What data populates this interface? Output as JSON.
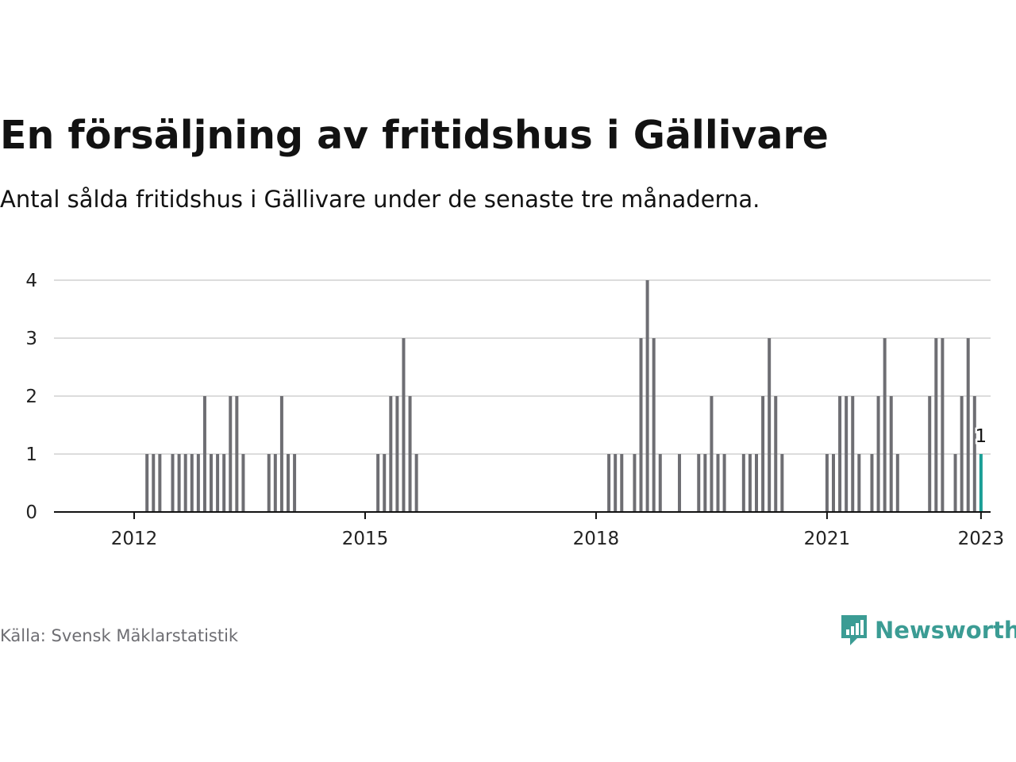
{
  "title": "En försäljning av fritidshus i Gällivare",
  "subtitle": "Antal sålda fritidshus i Gällivare under de senaste tre månaderna.",
  "source": "Källa: Svensk Mäklarstatistik",
  "brand": {
    "name": "Newsworthy",
    "color": "#3b9c94"
  },
  "colors": {
    "bar": "#6e6e73",
    "highlight": "#1a9e96",
    "grid": "#dcdcdc",
    "axis": "#121212"
  },
  "chart_data": {
    "type": "bar",
    "title": "En försäljning av fritidshus i Gällivare",
    "xlabel": "",
    "ylabel": "",
    "ylim": [
      0,
      4
    ],
    "yticks": [
      0,
      1,
      2,
      3,
      4
    ],
    "x_start": "2011-01",
    "x_end": "2023-02",
    "xticks": [
      {
        "label": "2012",
        "x": "2012-01"
      },
      {
        "label": "2015",
        "x": "2015-01"
      },
      {
        "label": "2018",
        "x": "2018-01"
      },
      {
        "label": "2021",
        "x": "2021-01"
      },
      {
        "label": "2023",
        "x": "2023-01"
      }
    ],
    "series": [
      {
        "name": "Antal sålda fritidshus",
        "points": [
          {
            "x": "2012-03",
            "y": 1
          },
          {
            "x": "2012-04",
            "y": 1
          },
          {
            "x": "2012-05",
            "y": 1
          },
          {
            "x": "2012-07",
            "y": 1
          },
          {
            "x": "2012-08",
            "y": 1
          },
          {
            "x": "2012-09",
            "y": 1
          },
          {
            "x": "2012-10",
            "y": 1
          },
          {
            "x": "2012-11",
            "y": 1
          },
          {
            "x": "2012-12",
            "y": 2
          },
          {
            "x": "2013-01",
            "y": 1
          },
          {
            "x": "2013-02",
            "y": 1
          },
          {
            "x": "2013-03",
            "y": 1
          },
          {
            "x": "2013-04",
            "y": 2
          },
          {
            "x": "2013-05",
            "y": 2
          },
          {
            "x": "2013-06",
            "y": 1
          },
          {
            "x": "2013-10",
            "y": 1
          },
          {
            "x": "2013-11",
            "y": 1
          },
          {
            "x": "2013-12",
            "y": 2
          },
          {
            "x": "2014-01",
            "y": 1
          },
          {
            "x": "2014-02",
            "y": 1
          },
          {
            "x": "2015-03",
            "y": 1
          },
          {
            "x": "2015-04",
            "y": 1
          },
          {
            "x": "2015-05",
            "y": 2
          },
          {
            "x": "2015-06",
            "y": 2
          },
          {
            "x": "2015-07",
            "y": 3
          },
          {
            "x": "2015-08",
            "y": 2
          },
          {
            "x": "2015-09",
            "y": 1
          },
          {
            "x": "2018-03",
            "y": 1
          },
          {
            "x": "2018-04",
            "y": 1
          },
          {
            "x": "2018-05",
            "y": 1
          },
          {
            "x": "2018-07",
            "y": 1
          },
          {
            "x": "2018-08",
            "y": 3
          },
          {
            "x": "2018-09",
            "y": 4
          },
          {
            "x": "2018-10",
            "y": 3
          },
          {
            "x": "2018-11",
            "y": 1
          },
          {
            "x": "2019-02",
            "y": 1
          },
          {
            "x": "2019-05",
            "y": 1
          },
          {
            "x": "2019-06",
            "y": 1
          },
          {
            "x": "2019-07",
            "y": 2
          },
          {
            "x": "2019-08",
            "y": 1
          },
          {
            "x": "2019-09",
            "y": 1
          },
          {
            "x": "2019-12",
            "y": 1
          },
          {
            "x": "2020-01",
            "y": 1
          },
          {
            "x": "2020-02",
            "y": 1
          },
          {
            "x": "2020-03",
            "y": 2
          },
          {
            "x": "2020-04",
            "y": 3
          },
          {
            "x": "2020-05",
            "y": 2
          },
          {
            "x": "2020-06",
            "y": 1
          },
          {
            "x": "2021-01",
            "y": 1
          },
          {
            "x": "2021-02",
            "y": 1
          },
          {
            "x": "2021-03",
            "y": 2
          },
          {
            "x": "2021-04",
            "y": 2
          },
          {
            "x": "2021-05",
            "y": 2
          },
          {
            "x": "2021-06",
            "y": 1
          },
          {
            "x": "2021-08",
            "y": 1
          },
          {
            "x": "2021-09",
            "y": 2
          },
          {
            "x": "2021-10",
            "y": 3
          },
          {
            "x": "2021-11",
            "y": 2
          },
          {
            "x": "2021-12",
            "y": 1
          },
          {
            "x": "2022-05",
            "y": 2
          },
          {
            "x": "2022-06",
            "y": 3
          },
          {
            "x": "2022-07",
            "y": 3
          },
          {
            "x": "2022-09",
            "y": 1
          },
          {
            "x": "2022-10",
            "y": 2
          },
          {
            "x": "2022-11",
            "y": 3
          },
          {
            "x": "2022-12",
            "y": 2
          },
          {
            "x": "2023-01",
            "y": 1
          }
        ]
      }
    ],
    "highlight": {
      "x": "2023-01",
      "y": 1,
      "label": "1"
    }
  }
}
